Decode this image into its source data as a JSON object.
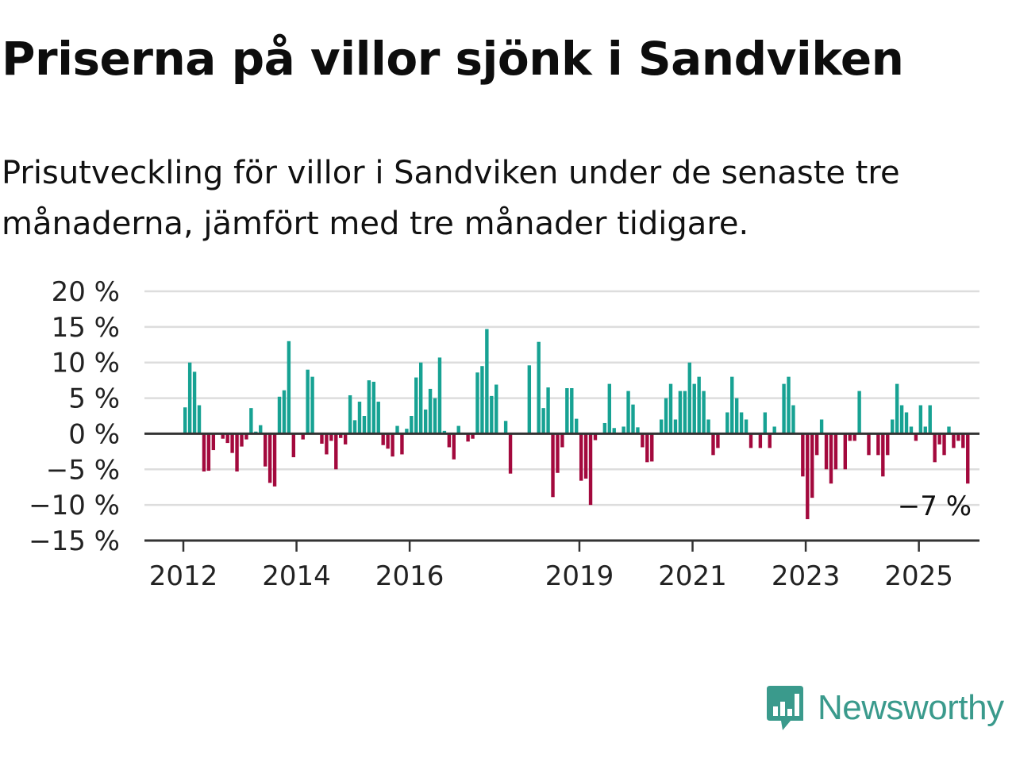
{
  "title": "Priserna på villor sjönk i Sandviken",
  "subtitle": "Prisutveckling för villor i Sandviken under de senaste tre månaderna, jämfört med tre månader tidigare.",
  "brand": {
    "name": "Newsworthy",
    "icon": "newsworthy-chart-icon",
    "color": "#3a9a8c"
  },
  "colors": {
    "positive": "#17a293",
    "negative": "#a3093d",
    "grid": "#dddddd",
    "axis": "#333333"
  },
  "chart_data": {
    "type": "bar",
    "title": "Priserna på villor sjönk i Sandviken",
    "xlabel": "",
    "ylabel": "",
    "ylim": [
      -15,
      20
    ],
    "yticks": [
      20,
      15,
      10,
      5,
      0,
      -5,
      -10,
      -15
    ],
    "ytick_labels": [
      "20 %",
      "15 %",
      "10 %",
      "5 %",
      "0 %",
      "−5 %",
      "−10 %",
      "−15 %"
    ],
    "xticks": [
      "2012",
      "2014",
      "2016",
      "2019",
      "2021",
      "2023",
      "2025"
    ],
    "grid": true,
    "x_start": "2012-01",
    "last_value_label": "−7 %",
    "values": [
      3.7,
      10,
      8.7,
      4,
      -5.3,
      -5.2,
      -2.3,
      null,
      -0.7,
      -1.3,
      -2.7,
      -5.3,
      -1.8,
      -0.8,
      3.6,
      0.3,
      1.2,
      -4.6,
      -6.9,
      -7.4,
      5.2,
      6.1,
      13,
      -3.3,
      null,
      -0.8,
      9,
      8,
      null,
      -1.4,
      -2.9,
      -1,
      -5,
      -0.6,
      -1.5,
      5.4,
      1.9,
      4.5,
      2.5,
      7.5,
      7.3,
      4.5,
      -1.6,
      -2.1,
      -3.2,
      1.1,
      -2.9,
      0.7,
      2.5,
      7.9,
      10,
      3.4,
      6.3,
      5,
      10.7,
      0.4,
      -1.9,
      -3.6,
      1.1,
      null,
      -1.1,
      -0.7,
      8.6,
      9.5,
      14.7,
      5.3,
      6.9,
      null,
      1.8,
      -5.6,
      null,
      null,
      null,
      9.6,
      null,
      12.9,
      3.6,
      6.5,
      -8.9,
      -5.5,
      -1.9,
      6.4,
      6.4,
      2.1,
      -6.6,
      -6.3,
      -10,
      -0.9,
      null,
      1.5,
      7,
      0.8,
      null,
      1,
      6,
      4.1,
      0.9,
      -1.9,
      -4,
      -3.9,
      null,
      2,
      5,
      7,
      2,
      6,
      6,
      10,
      7,
      8,
      6,
      2,
      -3,
      -2,
      null,
      3,
      8,
      5,
      3,
      2,
      -2,
      null,
      -2,
      3,
      -2,
      1,
      null,
      7,
      8,
      4,
      null,
      -6,
      -12,
      -9,
      -3,
      2,
      -5,
      -7,
      -5,
      null,
      -5,
      -1,
      -1,
      6,
      null,
      -3,
      null,
      -3,
      -6,
      -3,
      2,
      7,
      4,
      3,
      1,
      -1,
      4,
      1,
      4,
      -4,
      -1.5,
      -3,
      1,
      -2,
      -1,
      -2,
      -7
    ]
  }
}
